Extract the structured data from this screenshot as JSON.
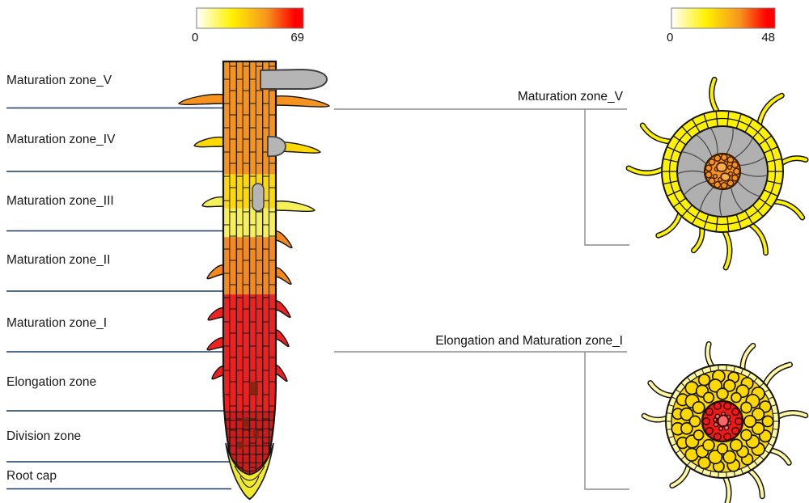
{
  "colorbar_left": {
    "min_label": "0",
    "max_label": "69"
  },
  "colorbar_right": {
    "min_label": "0",
    "max_label": "48"
  },
  "scale": {
    "white": "#FFFFFF",
    "yellow": "#FFF200",
    "orange": "#F7941D",
    "red": "#FF0000"
  },
  "zones": [
    {
      "label": "Maturation zone_V",
      "color": "#F6921E"
    },
    {
      "label": "Maturation zone_IV",
      "color": "#FFD900"
    },
    {
      "label": "Maturation zone_III",
      "color": "#F7F159"
    },
    {
      "label": "Maturation zone_II",
      "color": "#F6891E"
    },
    {
      "label": "Maturation zone_I",
      "color": "#EE2222"
    },
    {
      "label": "Elongation zone",
      "color": "#EF1F1F"
    },
    {
      "label": "Division zone",
      "color": "#D31A1A"
    },
    {
      "label": "Root cap",
      "color": "#F0E92E"
    }
  ],
  "cross_sections": [
    {
      "label": "Maturation zone_V",
      "epidermis": "#FFF200",
      "cortex": "#B0B0B0",
      "stele": "#F6921E",
      "stele_detail": "#FAAE4E"
    },
    {
      "label": "Elongation and Maturation zone_I",
      "epidermis": "#FFF8A0",
      "cortex": "#FFD800",
      "stele": "#EE1A1A",
      "stele_detail": "#FF6666"
    }
  ],
  "colors": {
    "primordium_gray": "#B5B5B5",
    "outline": "#141414",
    "separator_navy": "#1F3864",
    "connector_gray": "#8C8C8C"
  }
}
